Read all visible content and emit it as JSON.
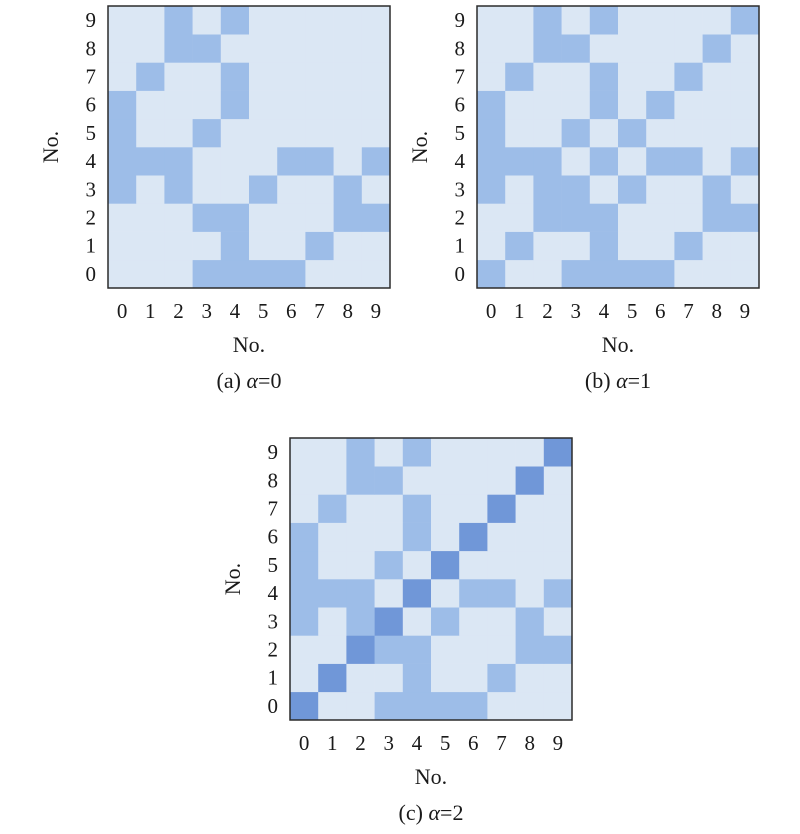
{
  "colors": {
    "background": "#dbe7f4",
    "level1": "#9dbde8",
    "level2": "#7097d8",
    "frame": "#2b2b2b"
  },
  "chart_data": [
    {
      "type": "heatmap",
      "caption_prefix": "(a) ",
      "caption_alpha": "α",
      "caption_value": "=0",
      "xlabel": "No.",
      "ylabel": "No.",
      "x_ticks": [
        "0",
        "1",
        "2",
        "3",
        "4",
        "5",
        "6",
        "7",
        "8",
        "9"
      ],
      "y_ticks": [
        "0",
        "1",
        "2",
        "3",
        "4",
        "5",
        "6",
        "7",
        "8",
        "9"
      ],
      "rows_bottom_to_top": [
        [
          0,
          0,
          0,
          1,
          1,
          1,
          1,
          0,
          0,
          0
        ],
        [
          0,
          0,
          0,
          0,
          1,
          0,
          0,
          1,
          0,
          0
        ],
        [
          0,
          0,
          0,
          1,
          1,
          0,
          0,
          0,
          1,
          1
        ],
        [
          1,
          0,
          1,
          0,
          0,
          1,
          0,
          0,
          1,
          0
        ],
        [
          1,
          1,
          1,
          0,
          0,
          0,
          1,
          1,
          0,
          1
        ],
        [
          1,
          0,
          0,
          1,
          0,
          0,
          0,
          0,
          0,
          0
        ],
        [
          1,
          0,
          0,
          0,
          1,
          0,
          0,
          0,
          0,
          0
        ],
        [
          0,
          1,
          0,
          0,
          1,
          0,
          0,
          0,
          0,
          0
        ],
        [
          0,
          0,
          1,
          1,
          0,
          0,
          0,
          0,
          0,
          0
        ],
        [
          0,
          0,
          1,
          0,
          1,
          0,
          0,
          0,
          0,
          0
        ]
      ]
    },
    {
      "type": "heatmap",
      "caption_prefix": "(b) ",
      "caption_alpha": "α",
      "caption_value": "=1",
      "xlabel": "No.",
      "ylabel": "No.",
      "x_ticks": [
        "0",
        "1",
        "2",
        "3",
        "4",
        "5",
        "6",
        "7",
        "8",
        "9"
      ],
      "y_ticks": [
        "0",
        "1",
        "2",
        "3",
        "4",
        "5",
        "6",
        "7",
        "8",
        "9"
      ],
      "rows_bottom_to_top": [
        [
          1,
          0,
          0,
          1,
          1,
          1,
          1,
          0,
          0,
          0
        ],
        [
          0,
          1,
          0,
          0,
          1,
          0,
          0,
          1,
          0,
          0
        ],
        [
          0,
          0,
          1,
          1,
          1,
          0,
          0,
          0,
          1,
          1
        ],
        [
          1,
          0,
          1,
          1,
          0,
          1,
          0,
          0,
          1,
          0
        ],
        [
          1,
          1,
          1,
          0,
          1,
          0,
          1,
          1,
          0,
          1
        ],
        [
          1,
          0,
          0,
          1,
          0,
          1,
          0,
          0,
          0,
          0
        ],
        [
          1,
          0,
          0,
          0,
          1,
          0,
          1,
          0,
          0,
          0
        ],
        [
          0,
          1,
          0,
          0,
          1,
          0,
          0,
          1,
          0,
          0
        ],
        [
          0,
          0,
          1,
          1,
          0,
          0,
          0,
          0,
          1,
          0
        ],
        [
          0,
          0,
          1,
          0,
          1,
          0,
          0,
          0,
          0,
          1
        ]
      ]
    },
    {
      "type": "heatmap",
      "caption_prefix": "(c) ",
      "caption_alpha": "α",
      "caption_value": "=2",
      "xlabel": "No.",
      "ylabel": "No.",
      "x_ticks": [
        "0",
        "1",
        "2",
        "3",
        "4",
        "5",
        "6",
        "7",
        "8",
        "9"
      ],
      "y_ticks": [
        "0",
        "1",
        "2",
        "3",
        "4",
        "5",
        "6",
        "7",
        "8",
        "9"
      ],
      "rows_bottom_to_top": [
        [
          2,
          0,
          0,
          1,
          1,
          1,
          1,
          0,
          0,
          0
        ],
        [
          0,
          2,
          0,
          0,
          1,
          0,
          0,
          1,
          0,
          0
        ],
        [
          0,
          0,
          2,
          1,
          1,
          0,
          0,
          0,
          1,
          1
        ],
        [
          1,
          0,
          1,
          2,
          0,
          1,
          0,
          0,
          1,
          0
        ],
        [
          1,
          1,
          1,
          0,
          2,
          0,
          1,
          1,
          0,
          1
        ],
        [
          1,
          0,
          0,
          1,
          0,
          2,
          0,
          0,
          0,
          0
        ],
        [
          1,
          0,
          0,
          0,
          1,
          0,
          2,
          0,
          0,
          0
        ],
        [
          0,
          1,
          0,
          0,
          1,
          0,
          0,
          2,
          0,
          0
        ],
        [
          0,
          0,
          1,
          1,
          0,
          0,
          0,
          0,
          2,
          0
        ],
        [
          0,
          0,
          1,
          0,
          1,
          0,
          0,
          0,
          0,
          2
        ]
      ]
    }
  ]
}
